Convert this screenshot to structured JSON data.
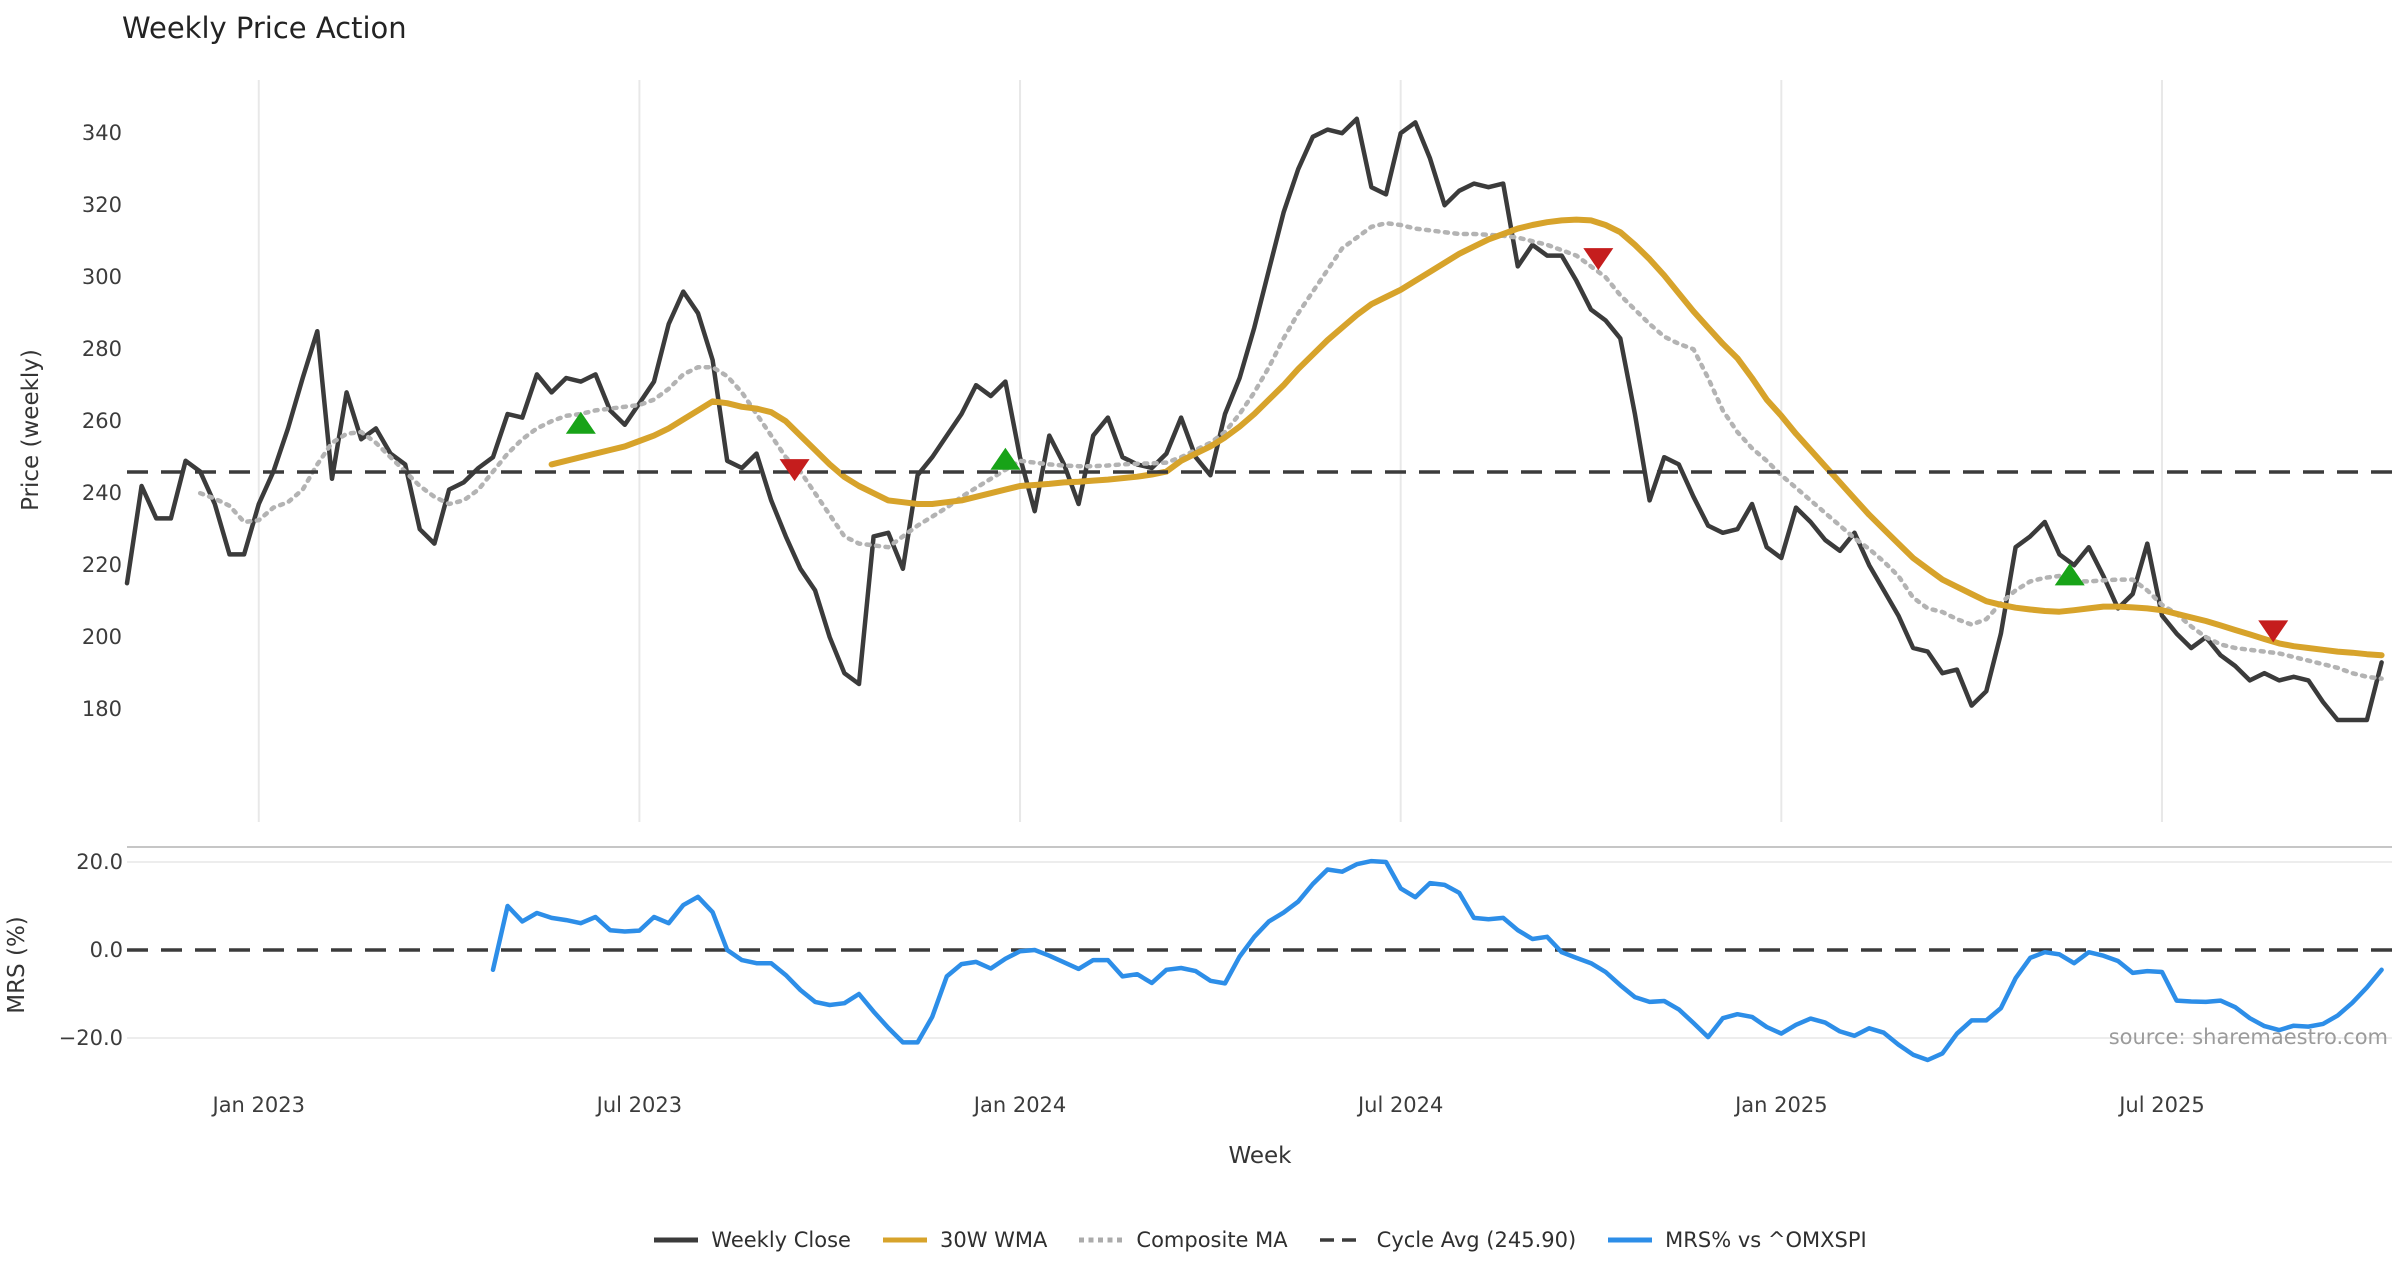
{
  "title": "Weekly Price Action",
  "source_note": "source: sharemaestro.com",
  "colors": {
    "weekly_close": "#3b3b3b",
    "wma_30w": "#d7a32b",
    "composite_ma": "#b3b3b3",
    "cycle_avg": "#3b3b3b",
    "mrs_line": "#2d8ee8",
    "buy_marker": "#18a318",
    "sell_marker": "#c51d1d",
    "gridline": "#e8e8e8",
    "panel_spine": "#c6c6c6"
  },
  "legend": {
    "items": [
      {
        "label": "Weekly Close",
        "color": "#3b3b3b",
        "style": "solid"
      },
      {
        "label": "30W WMA",
        "color": "#d7a32b",
        "style": "solid"
      },
      {
        "label": "Composite MA",
        "color": "#ababab",
        "style": "dotted"
      },
      {
        "label": "Cycle Avg (245.90)",
        "color": "#3b3b3b",
        "style": "dashed"
      },
      {
        "label": "MRS% vs ^OMXSPI",
        "color": "#2d8ee8",
        "style": "solid"
      }
    ]
  },
  "chart_data": {
    "type": "line",
    "title": "Weekly Price Action",
    "x_axis": {
      "label": "Week",
      "tick_labels": [
        "Jan 2023",
        "Jul 2023",
        "Jan 2024",
        "Jul 2024",
        "Jan 2025",
        "Jul 2025"
      ],
      "tick_week_indices": [
        9,
        35,
        61,
        87,
        113,
        139
      ],
      "total_weeks": 155
    },
    "panels": [
      {
        "id": "price",
        "ylabel": "Price (weekly)",
        "yticks": [
          180,
          200,
          220,
          240,
          260,
          280,
          300,
          320,
          340
        ],
        "ylim": [
          150,
          355
        ],
        "grid": "vertical-only",
        "reference_line": {
          "name": "Cycle Avg",
          "value": 245.9,
          "style": "dashed",
          "color": "#3b3b3b"
        },
        "series": [
          {
            "name": "Weekly Close",
            "style": "solid",
            "color": "#3b3b3b",
            "width": 4.5,
            "start_week": 0,
            "values": [
              215,
              242,
              233,
              233,
              249,
              246,
              237,
              223,
              223,
              237,
              246,
              258,
              272,
              285,
              244,
              268,
              255,
              258,
              251,
              248,
              230,
              226,
              241,
              243,
              247,
              250,
              262,
              261,
              273,
              268,
              272,
              271,
              273,
              263,
              259,
              265,
              271,
              287,
              296,
              290,
              277,
              249,
              247,
              251,
              238,
              228,
              219,
              213,
              200,
              190,
              187,
              228,
              229,
              219,
              245,
              250,
              256,
              262,
              270,
              267,
              271,
              250,
              235,
              256,
              248,
              237,
              256,
              261,
              250,
              248,
              247,
              251,
              261,
              250,
              245,
              262,
              272,
              286,
              302,
              318,
              330,
              339,
              341,
              340,
              344,
              325,
              323,
              340,
              343,
              333,
              320,
              324,
              326,
              325,
              326,
              303,
              309,
              306,
              306,
              299,
              291,
              288,
              283,
              262,
              238,
              250,
              248,
              239,
              231,
              229,
              230,
              237,
              225,
              222,
              236,
              232,
              227,
              224,
              229,
              220,
              213,
              206,
              197,
              196,
              190,
              191,
              181,
              185,
              201,
              225,
              228,
              232,
              223,
              220,
              225,
              217,
              208,
              212,
              226,
              206,
              201,
              197,
              200,
              195,
              192,
              188,
              190,
              188,
              189,
              188,
              182,
              177,
              177,
              177,
              193
            ]
          },
          {
            "name": "30W WMA",
            "style": "solid",
            "color": "#d7a32b",
            "width": 6,
            "start_week": 29,
            "values": [
              248,
              249,
              250,
              251,
              252,
              253,
              254.5,
              256,
              258,
              260.5,
              263,
              265.5,
              265,
              264,
              263.5,
              262.5,
              260,
              256,
              252,
              248,
              244.5,
              242,
              240,
              238,
              237.5,
              237,
              237,
              237.5,
              238,
              239,
              240,
              241,
              242,
              242.3,
              242.6,
              243,
              243.2,
              243.5,
              243.8,
              244.2,
              244.6,
              245.2,
              246,
              249,
              251,
              253,
              255.5,
              258.5,
              262,
              266,
              270,
              274.5,
              278.5,
              282.5,
              286,
              289.5,
              292.5,
              294.5,
              296.5,
              299,
              301.5,
              304,
              306.5,
              308.5,
              310.5,
              312,
              313.5,
              314.5,
              315.3,
              315.8,
              316,
              315.8,
              314.5,
              312.5,
              309,
              305,
              300.5,
              295.5,
              290.5,
              286,
              281.5,
              277.5,
              272,
              266,
              261.5,
              256.5,
              252,
              247.5,
              243,
              238.5,
              234,
              230,
              226,
              222,
              219,
              216,
              214,
              212,
              210,
              209,
              208.2,
              207.7,
              207.3,
              207.1,
              207.5,
              208,
              208.5,
              208.5,
              208.3,
              208,
              207.5,
              206.5,
              205.5,
              204.5,
              203.3,
              202,
              200.8,
              199.5,
              198.3,
              197.5,
              197,
              196.5,
              196,
              195.7,
              195.3,
              195
            ]
          },
          {
            "name": "Composite MA",
            "style": "dotted",
            "color": "#b3b3b3",
            "width": 4.5,
            "start_week": 5,
            "values": [
              240,
              238.5,
              236.5,
              232,
              232.5,
              236,
              237.5,
              241,
              248,
              254,
              256.5,
              257,
              254,
              250,
              246,
              242,
              239,
              237,
              238,
              241,
              246,
              251,
              255,
              258,
              260,
              261.5,
              262,
              263,
              263.5,
              264,
              264.5,
              266,
              269,
              273,
              275,
              275,
              272.5,
              268,
              262,
              256,
              250,
              246,
              240,
              234,
              228,
              226,
              225.5,
              225,
              228,
              231,
              233.5,
              236,
              239,
              241.5,
              244,
              246.5,
              249,
              248.5,
              248,
              247.7,
              247.5,
              247.5,
              247.7,
              248,
              248.2,
              248.3,
              248.5,
              250,
              252,
              254,
              257,
              262,
              268,
              275,
              283,
              290,
              296,
              302,
              308,
              311,
              314,
              315,
              314.5,
              313.5,
              313,
              312.5,
              312,
              312,
              311.8,
              311.5,
              311,
              310,
              309,
              307.5,
              306,
              303,
              300,
              295,
              291,
              287,
              283.5,
              281.5,
              280,
              272,
              263,
              257,
              252.5,
              249,
              245,
              241.5,
              238,
              234.5,
              231,
              227.5,
              224.5,
              221,
              217,
              211,
              208,
              207,
              205,
              203.5,
              205,
              209.5,
              213,
              215.5,
              216.5,
              217,
              215.5,
              215.5,
              215.8,
              216,
              216,
              213,
              209,
              206.5,
              203,
              200,
              198,
              197,
              196.5,
              196,
              195.5,
              194.5,
              193.5,
              192.5,
              191.5,
              190,
              189,
              188.5
            ]
          }
        ],
        "buy_signals": {
          "shape": "triangle-up",
          "color": "#18a318",
          "points": [
            [
              31,
              259.3
            ],
            [
              60,
              249.3
            ],
            [
              132.7,
              217.2
            ]
          ]
        },
        "sell_signals": {
          "shape": "triangle-down",
          "color": "#c51d1d",
          "points": [
            [
              45.6,
              246.7
            ],
            [
              100.5,
              305.3
            ],
            [
              146.6,
              201.9
            ]
          ]
        }
      },
      {
        "id": "mrs",
        "ylabel": "MRS (%)",
        "yticks": [
          -20,
          0,
          20
        ],
        "ytick_labels": [
          "−20.0",
          "0.0",
          "20.0"
        ],
        "ylim": [
          -27,
          23
        ],
        "grid": "horizontal-only",
        "reference_line": {
          "value": 0,
          "style": "dashed",
          "color": "#3b3b3b"
        },
        "series": [
          {
            "name": "MRS% vs ^OMXSPI",
            "style": "solid",
            "color": "#2d8ee8",
            "width": 4.5,
            "start_week": 25,
            "values": [
              -4.5,
              10,
              6.5,
              8.4,
              7.3,
              6.8,
              6.1,
              7.5,
              4.5,
              4.2,
              4.4,
              7.5,
              6.1,
              10.2,
              12.1,
              8.6,
              0,
              -2.3,
              -3,
              -3,
              -5.7,
              -9.1,
              -11.8,
              -12.5,
              -12.1,
              -10,
              -14,
              -17.7,
              -21,
              -21,
              -15.2,
              -6,
              -3.2,
              -2.7,
              -4.2,
              -2,
              -0.3,
              0,
              -1.3,
              -2.8,
              -4.3,
              -2.3,
              -2.3,
              -6,
              -5.5,
              -7.5,
              -4.5,
              -4.1,
              -4.8,
              -7,
              -7.6,
              -1.5,
              3,
              6.5,
              8.5,
              11,
              15,
              18.3,
              17.8,
              19.5,
              20.2,
              20,
              14,
              12,
              15.2,
              14.8,
              13,
              7.3,
              7,
              7.3,
              4.5,
              2.5,
              3,
              -0.5,
              -1.8,
              -3,
              -5,
              -8,
              -10.7,
              -11.8,
              -11.6,
              -13.5,
              -16.6,
              -19.8,
              -15.5,
              -14.6,
              -15.2,
              -17.5,
              -19,
              -17,
              -15.6,
              -16.5,
              -18.5,
              -19.5,
              -17.8,
              -18.8,
              -21.5,
              -23.8,
              -25,
              -23.5,
              -19,
              -16,
              -16,
              -13.2,
              -6.4,
              -1.8,
              -0.5,
              -1,
              -3,
              -0.5,
              -1.3,
              -2.5,
              -5.2,
              -4.8,
              -5,
              -11.5,
              -11.7,
              -11.8,
              -11.5,
              -13,
              -15.5,
              -17.3,
              -18.2,
              -17.2,
              -17.4,
              -16.8,
              -14.9,
              -12,
              -8.5,
              -4.5
            ]
          }
        ]
      }
    ]
  }
}
